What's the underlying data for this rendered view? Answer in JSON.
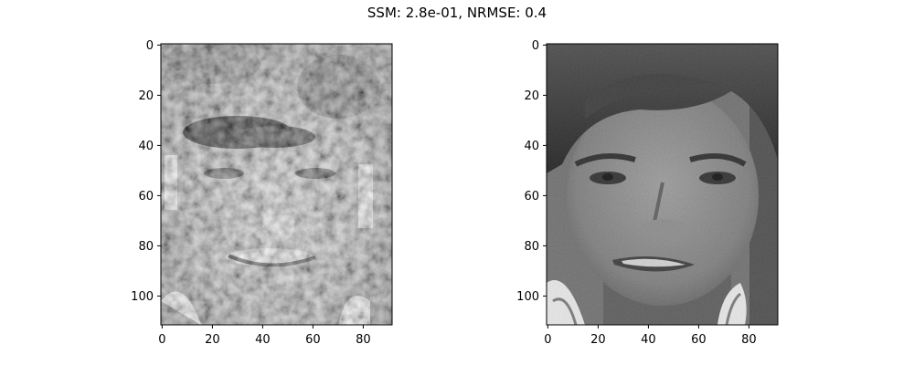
{
  "figure": {
    "title": "SSM: 2.8e-01, NRMSE: 0.4"
  },
  "panels": [
    {
      "name": "reconstructed-face",
      "description_colormap": "gray",
      "x_ticks": [
        "0",
        "20",
        "40",
        "60",
        "80"
      ],
      "y_ticks": [
        "0",
        "20",
        "40",
        "60",
        "80",
        "100"
      ],
      "x_tick_values": [
        0,
        20,
        40,
        60,
        80
      ],
      "y_tick_values": [
        0,
        20,
        40,
        60,
        80,
        100
      ],
      "xlim": [
        -0.5,
        91.5
      ],
      "ylim": [
        111.5,
        -0.5
      ]
    },
    {
      "name": "original-face",
      "description_colormap": "gray",
      "x_ticks": [
        "0",
        "20",
        "40",
        "60",
        "80"
      ],
      "y_ticks": [
        "0",
        "20",
        "40",
        "60",
        "80",
        "100"
      ],
      "x_tick_values": [
        0,
        20,
        40,
        60,
        80
      ],
      "y_tick_values": [
        0,
        20,
        40,
        60,
        80,
        100
      ],
      "xlim": [
        -0.5,
        91.5
      ],
      "ylim": [
        111.5,
        -0.5
      ]
    }
  ]
}
